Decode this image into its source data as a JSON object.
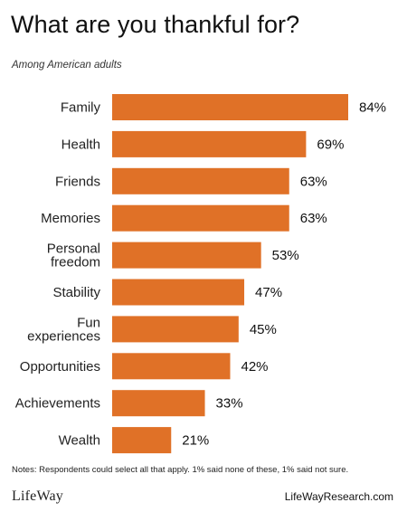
{
  "chart_data": {
    "type": "bar",
    "orientation": "horizontal",
    "title": "What are you thankful for?",
    "subtitle": "Among American adults",
    "categories": [
      [
        "Family"
      ],
      [
        "Health"
      ],
      [
        "Friends"
      ],
      [
        "Memories"
      ],
      [
        "Personal",
        "freedom"
      ],
      [
        "Stability"
      ],
      [
        "Fun",
        "experiences"
      ],
      [
        "Opportunities"
      ],
      [
        "Achievements"
      ],
      [
        "Wealth"
      ]
    ],
    "values": [
      84,
      69,
      63,
      63,
      53,
      47,
      45,
      42,
      33,
      21
    ],
    "value_labels": [
      "84%",
      "69%",
      "63%",
      "63%",
      "53%",
      "47%",
      "45%",
      "42%",
      "33%",
      "21%"
    ],
    "xlim": [
      0,
      100
    ],
    "bar_color": "#E07127",
    "grid": false,
    "legend": "none"
  },
  "notes": "Notes: Respondents could select all that apply.  1% said none of these, 1% said not sure.",
  "brand": "LifeWay",
  "site": "LifeWayResearch.com"
}
